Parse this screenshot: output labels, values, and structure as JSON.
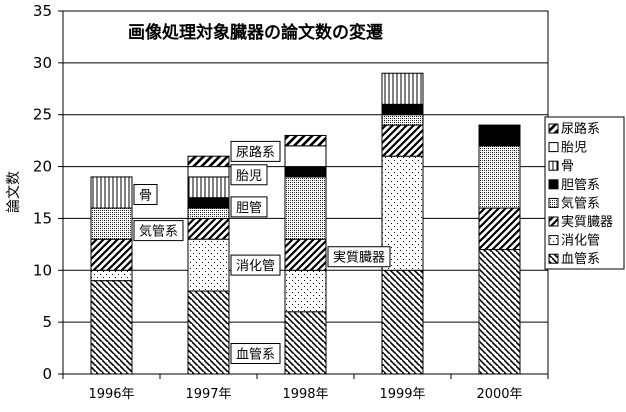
{
  "chart_data": {
    "type": "bar",
    "stacked": true,
    "title": "画像処理対象臓器の論文数の変遷",
    "ylabel": "論文数",
    "xlabel": "",
    "ylim": [
      0,
      35
    ],
    "yticks": [
      0,
      5,
      10,
      15,
      20,
      25,
      30,
      35
    ],
    "grid": true,
    "legend_position": "right",
    "categories": [
      "1996年",
      "1997年",
      "1998年",
      "1999年",
      "2000年"
    ],
    "series": [
      {
        "name": "血管系",
        "pattern": "hatch-back",
        "values": [
          9,
          8,
          6,
          10,
          12
        ]
      },
      {
        "name": "消化管",
        "pattern": "dots",
        "values": [
          1,
          5,
          4,
          11,
          0
        ]
      },
      {
        "name": "実質臓器",
        "pattern": "hatch-fwd",
        "values": [
          3,
          2,
          3,
          3,
          4
        ]
      },
      {
        "name": "気管系",
        "pattern": "crosshatch",
        "values": [
          3,
          1,
          6,
          1,
          6
        ]
      },
      {
        "name": "胆管系",
        "pattern": "solid",
        "values": [
          0,
          1,
          1,
          1,
          2
        ]
      },
      {
        "name": "骨",
        "pattern": "vlines",
        "values": [
          3,
          2,
          0,
          3,
          0
        ]
      },
      {
        "name": "胎児",
        "pattern": "empty",
        "values": [
          0,
          1,
          2,
          0,
          0
        ]
      },
      {
        "name": "尿路系",
        "pattern": "hatch-fwd-thin",
        "values": [
          0,
          1,
          1,
          0,
          0
        ]
      }
    ],
    "callouts": [
      {
        "text": "骨",
        "category": 0,
        "series": 5
      },
      {
        "text": "気管系",
        "category": 0,
        "series": 3
      },
      {
        "text": "消化管",
        "category": 1,
        "series": 1
      },
      {
        "text": "血管系",
        "category": 1,
        "series": 0
      },
      {
        "text": "尿路系",
        "category": 1,
        "series": 7
      },
      {
        "text": "胎児",
        "category": 1,
        "series": 6
      },
      {
        "text": "胆管",
        "category": 1,
        "series": 4
      },
      {
        "text": "実質臓器",
        "category": 2,
        "series": 2
      }
    ]
  }
}
